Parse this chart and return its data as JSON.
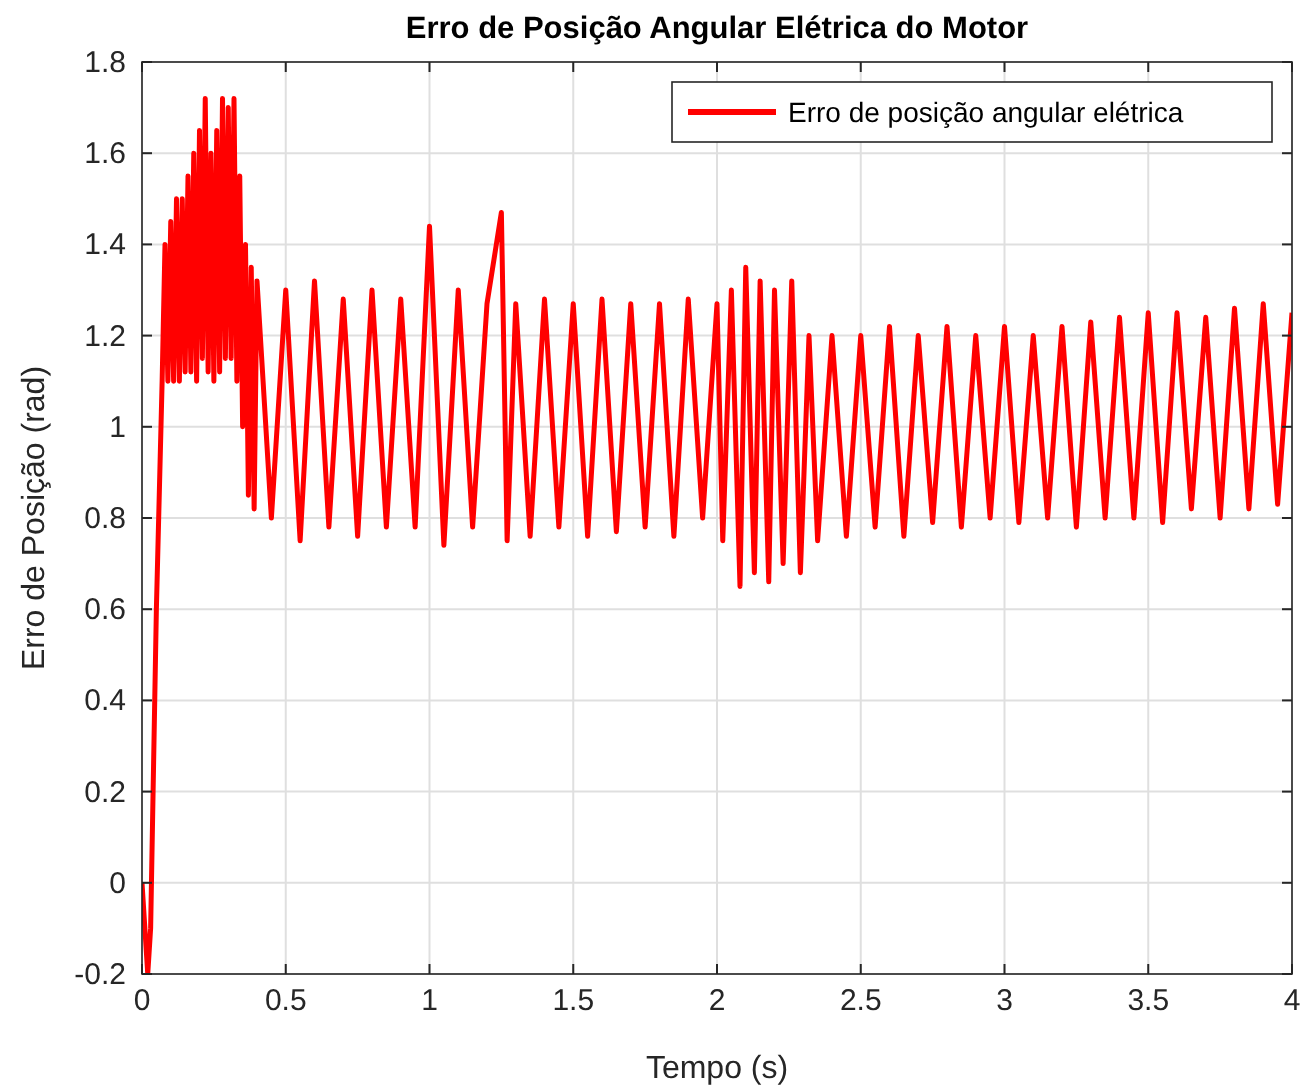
{
  "chart_data": {
    "type": "line",
    "title": "Erro de Posição Angular Elétrica do Motor",
    "xlabel": "Tempo (s)",
    "ylabel": "Erro de Posição (rad)",
    "xlim": [
      0,
      4
    ],
    "xticks": [
      0,
      0.5,
      1,
      1.5,
      2,
      2.5,
      3,
      3.5,
      4
    ],
    "ylim": [
      -0.2,
      1.8
    ],
    "yticks": [
      -0.2,
      0,
      0.2,
      0.4,
      0.6,
      0.8,
      1,
      1.2,
      1.4,
      1.6,
      1.8
    ],
    "grid": true,
    "legend": "top right",
    "line_style": "solid",
    "series": [
      {
        "name": "Erro de posição angular elétrica",
        "color": "#ff0000",
        "x": [
          0,
          0.01,
          0.02,
          0.03,
          0.05,
          0.07,
          0.08,
          0.09,
          0.1,
          0.11,
          0.12,
          0.13,
          0.14,
          0.15,
          0.16,
          0.17,
          0.18,
          0.19,
          0.2,
          0.21,
          0.22,
          0.23,
          0.24,
          0.25,
          0.26,
          0.27,
          0.28,
          0.29,
          0.3,
          0.31,
          0.32,
          0.33,
          0.34,
          0.35,
          0.36,
          0.37,
          0.38,
          0.39,
          0.4,
          0.45,
          0.5,
          0.55,
          0.6,
          0.65,
          0.7,
          0.75,
          0.8,
          0.85,
          0.9,
          0.95,
          1.0,
          1.05,
          1.1,
          1.15,
          1.2,
          1.25,
          1.27,
          1.3,
          1.35,
          1.4,
          1.45,
          1.5,
          1.55,
          1.6,
          1.65,
          1.7,
          1.75,
          1.8,
          1.85,
          1.9,
          1.95,
          2.0,
          2.02,
          2.05,
          2.08,
          2.1,
          2.13,
          2.15,
          2.18,
          2.2,
          2.23,
          2.26,
          2.29,
          2.32,
          2.35,
          2.4,
          2.45,
          2.5,
          2.55,
          2.6,
          2.65,
          2.7,
          2.75,
          2.8,
          2.85,
          2.9,
          2.95,
          3.0,
          3.05,
          3.1,
          3.15,
          3.2,
          3.25,
          3.3,
          3.35,
          3.4,
          3.45,
          3.5,
          3.55,
          3.6,
          3.65,
          3.7,
          3.75,
          3.8,
          3.85,
          3.9,
          3.95,
          4.0
        ],
        "values": [
          0,
          -0.1,
          -0.2,
          -0.1,
          0.6,
          1.1,
          1.4,
          1.1,
          1.45,
          1.1,
          1.5,
          1.1,
          1.5,
          1.12,
          1.55,
          1.12,
          1.6,
          1.1,
          1.65,
          1.15,
          1.72,
          1.12,
          1.6,
          1.1,
          1.65,
          1.12,
          1.72,
          1.15,
          1.7,
          1.15,
          1.72,
          1.1,
          1.55,
          1.0,
          1.4,
          0.85,
          1.35,
          0.82,
          1.32,
          0.8,
          1.3,
          0.75,
          1.32,
          0.78,
          1.28,
          0.76,
          1.3,
          0.78,
          1.28,
          0.78,
          1.44,
          0.74,
          1.3,
          0.78,
          1.27,
          1.47,
          0.75,
          1.27,
          0.76,
          1.28,
          0.78,
          1.27,
          0.76,
          1.28,
          0.77,
          1.27,
          0.78,
          1.27,
          0.76,
          1.28,
          0.8,
          1.27,
          0.75,
          1.3,
          0.65,
          1.35,
          0.68,
          1.32,
          0.66,
          1.3,
          0.7,
          1.32,
          0.68,
          1.2,
          0.75,
          1.2,
          0.76,
          1.2,
          0.78,
          1.22,
          0.76,
          1.2,
          0.79,
          1.22,
          0.78,
          1.2,
          0.8,
          1.22,
          0.79,
          1.2,
          0.8,
          1.22,
          0.78,
          1.23,
          0.8,
          1.24,
          0.8,
          1.25,
          0.79,
          1.25,
          0.82,
          1.24,
          0.8,
          1.26,
          0.82,
          1.27,
          0.83,
          1.25
        ]
      }
    ]
  }
}
